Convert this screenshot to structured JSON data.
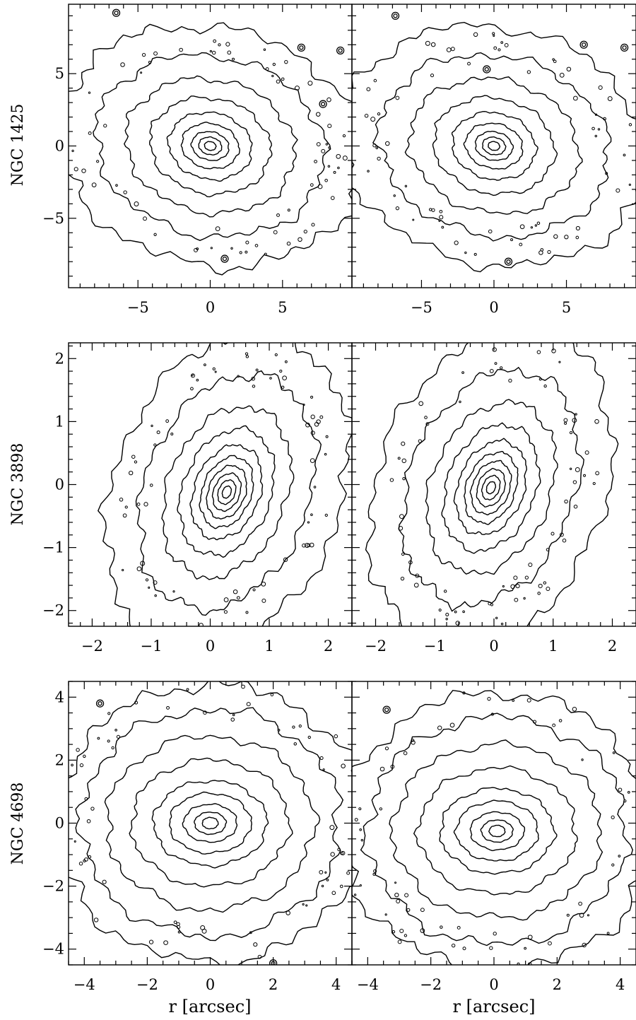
{
  "chart_data": [
    {
      "type": "contour",
      "row_label": "NGC 1425",
      "panels": [
        {
          "side": "left",
          "xlim": [
            -9.8,
            9.8
          ],
          "ylim": [
            -9.8,
            9.8
          ],
          "xticks": [
            -5,
            0,
            5
          ],
          "xtick_labels": [
            "−5",
            "0",
            "5"
          ],
          "yticks": [
            -5,
            0,
            5
          ],
          "ytick_labels": [
            "−5",
            "0",
            "5"
          ],
          "center": [
            0,
            0
          ],
          "angle_deg": -12,
          "contours": [
            {
              "a": 0.4,
              "b": 0.3
            },
            {
              "a": 0.8,
              "b": 0.6
            },
            {
              "a": 1.3,
              "b": 0.98
            },
            {
              "a": 2.0,
              "b": 1.55
            },
            {
              "a": 2.9,
              "b": 2.3
            },
            {
              "a": 4.2,
              "b": 3.3
            },
            {
              "a": 5.9,
              "b": 4.6
            },
            {
              "a": 8.0,
              "b": 6.2
            },
            {
              "a": 10.6,
              "b": 8.2
            }
          ],
          "stars": [
            [
              -6.5,
              9.2
            ],
            [
              6.3,
              6.8
            ],
            [
              9.0,
              6.6
            ],
            [
              7.8,
              2.9
            ],
            [
              1.0,
              -7.8
            ]
          ]
        },
        {
          "side": "right",
          "xlim": [
            -9.8,
            9.8
          ],
          "ylim": [
            -9.8,
            9.8
          ],
          "xticks": [
            -5,
            0,
            5
          ],
          "xtick_labels": [
            "−5",
            "0",
            "5"
          ],
          "yticks": [
            -5,
            0,
            5
          ],
          "ytick_labels": [],
          "center": [
            0,
            0
          ],
          "angle_deg": -12,
          "contours": [
            {
              "a": 0.4,
              "b": 0.3
            },
            {
              "a": 0.8,
              "b": 0.6
            },
            {
              "a": 1.3,
              "b": 0.98
            },
            {
              "a": 2.0,
              "b": 1.55
            },
            {
              "a": 2.9,
              "b": 2.3
            },
            {
              "a": 4.2,
              "b": 3.3
            },
            {
              "a": 5.9,
              "b": 4.6
            },
            {
              "a": 8.0,
              "b": 6.2
            },
            {
              "a": 10.6,
              "b": 8.2
            }
          ],
          "stars": [
            [
              -6.8,
              9.0
            ],
            [
              6.2,
              7.0
            ],
            [
              9.0,
              6.8
            ],
            [
              -0.5,
              5.3
            ],
            [
              1.0,
              -8.0
            ]
          ]
        }
      ]
    },
    {
      "type": "contour",
      "row_label": "NGC 3898",
      "panels": [
        {
          "side": "left",
          "xlim": [
            -2.4,
            2.4
          ],
          "ylim": [
            -2.25,
            2.25
          ],
          "xticks": [
            -2,
            -1,
            0,
            1,
            2
          ],
          "xtick_labels": [
            "−2",
            "−1",
            "0",
            "1",
            "2"
          ],
          "yticks": [
            -2,
            -1,
            0,
            1,
            2
          ],
          "ytick_labels": [
            "−2",
            "−1",
            "0",
            "1",
            "2"
          ],
          "center": [
            0.28,
            -0.12
          ],
          "angle_deg": 65,
          "contours": [
            {
              "a": 0.1,
              "b": 0.07
            },
            {
              "a": 0.2,
              "b": 0.14
            },
            {
              "a": 0.31,
              "b": 0.22
            },
            {
              "a": 0.44,
              "b": 0.31
            },
            {
              "a": 0.59,
              "b": 0.41
            },
            {
              "a": 0.78,
              "b": 0.55
            },
            {
              "a": 1.05,
              "b": 0.74
            },
            {
              "a": 1.42,
              "b": 1.0
            },
            {
              "a": 1.95,
              "b": 1.38
            },
            {
              "a": 2.65,
              "b": 1.9
            }
          ],
          "stars": []
        },
        {
          "side": "right",
          "xlim": [
            -2.4,
            2.4
          ],
          "ylim": [
            -2.25,
            2.25
          ],
          "xticks": [
            -2,
            -1,
            0,
            1,
            2
          ],
          "xtick_labels": [
            "−2",
            "−1",
            "0",
            "1",
            "2"
          ],
          "yticks": [
            -2,
            -1,
            0,
            1,
            2
          ],
          "ytick_labels": [],
          "center": [
            -0.05,
            -0.05
          ],
          "angle_deg": 65,
          "contours": [
            {
              "a": 0.1,
              "b": 0.07
            },
            {
              "a": 0.2,
              "b": 0.14
            },
            {
              "a": 0.31,
              "b": 0.22
            },
            {
              "a": 0.44,
              "b": 0.31
            },
            {
              "a": 0.59,
              "b": 0.41
            },
            {
              "a": 0.78,
              "b": 0.55
            },
            {
              "a": 1.05,
              "b": 0.74
            },
            {
              "a": 1.42,
              "b": 1.0
            },
            {
              "a": 1.95,
              "b": 1.38
            },
            {
              "a": 2.65,
              "b": 1.9
            }
          ],
          "stars": []
        }
      ]
    },
    {
      "type": "contour",
      "row_label": "NGC 4698",
      "xlabel": "r [arcsec]",
      "panels": [
        {
          "side": "left",
          "xlim": [
            -4.5,
            4.5
          ],
          "ylim": [
            -4.5,
            4.5
          ],
          "xticks": [
            -4,
            -2,
            0,
            2,
            4
          ],
          "xtick_labels": [
            "−4",
            "−2",
            "0",
            "2",
            "4"
          ],
          "yticks": [
            -4,
            -2,
            0,
            2,
            4
          ],
          "ytick_labels": [
            "−4",
            "−2",
            "0",
            "2",
            "4"
          ],
          "center": [
            0,
            0
          ],
          "angle_deg": 0,
          "contours": [
            {
              "a": 0.25,
              "b": 0.18
            },
            {
              "a": 0.5,
              "b": 0.35
            },
            {
              "a": 0.85,
              "b": 0.6
            },
            {
              "a": 1.3,
              "b": 0.95
            },
            {
              "a": 1.8,
              "b": 1.35
            },
            {
              "a": 2.5,
              "b": 2.0
            },
            {
              "a": 3.3,
              "b": 2.75
            },
            {
              "a": 4.1,
              "b": 3.6
            },
            {
              "a": 4.9,
              "b": 4.4
            }
          ],
          "stars": [
            [
              -3.5,
              3.8
            ],
            [
              2.0,
              -4.45
            ]
          ]
        },
        {
          "side": "right",
          "xlim": [
            -4.5,
            4.5
          ],
          "ylim": [
            -4.5,
            4.5
          ],
          "xticks": [
            -4,
            -2,
            0,
            2,
            4
          ],
          "xtick_labels": [
            "−4",
            "−2",
            "0",
            "2",
            "4"
          ],
          "yticks": [
            -4,
            -2,
            0,
            2,
            4
          ],
          "ytick_labels": [],
          "center": [
            0.1,
            -0.25
          ],
          "angle_deg": 0,
          "contours": [
            {
              "a": 0.25,
              "b": 0.18
            },
            {
              "a": 0.5,
              "b": 0.35
            },
            {
              "a": 0.85,
              "b": 0.6
            },
            {
              "a": 1.3,
              "b": 0.95
            },
            {
              "a": 1.8,
              "b": 1.35
            },
            {
              "a": 2.5,
              "b": 2.0
            },
            {
              "a": 3.3,
              "b": 2.75
            },
            {
              "a": 4.1,
              "b": 3.6
            },
            {
              "a": 4.9,
              "b": 4.4
            }
          ],
          "stars": [
            [
              -3.4,
              3.6
            ]
          ]
        }
      ]
    }
  ]
}
